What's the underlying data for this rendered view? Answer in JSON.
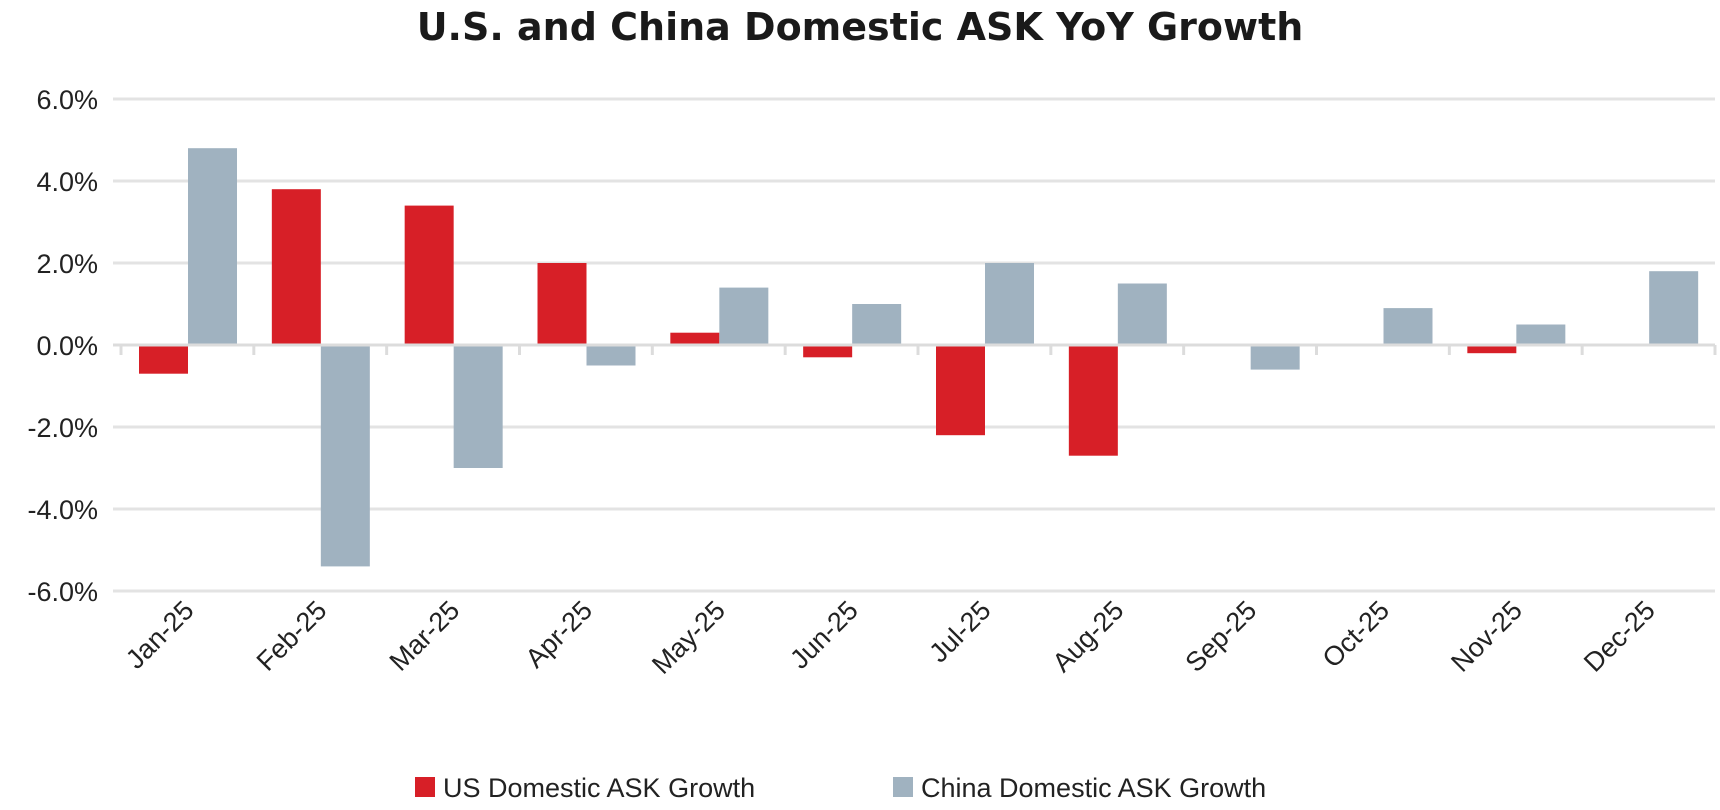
{
  "chart_data": {
    "type": "bar",
    "title": "U.S. and China Domestic ASK YoY Growth",
    "xlabel": "",
    "ylabel": "",
    "categories": [
      "Jan-25",
      "Feb-25",
      "Mar-25",
      "Apr-25",
      "May-25",
      "Jun-25",
      "Jul-25",
      "Aug-25",
      "Sep-25",
      "Oct-25",
      "Nov-25",
      "Dec-25"
    ],
    "series": [
      {
        "name": "US Domestic ASK Growth",
        "color": "#d71f27",
        "values": [
          -0.7,
          3.8,
          3.4,
          2.0,
          0.3,
          -0.3,
          -2.2,
          -2.7,
          0.0,
          0.0,
          -0.2,
          0.0
        ]
      },
      {
        "name": "China Domestic ASK Growth",
        "color": "#a0b2c0",
        "values": [
          4.8,
          -5.4,
          -3.0,
          -0.5,
          1.4,
          1.0,
          2.0,
          1.5,
          -0.6,
          0.9,
          0.5,
          1.8
        ]
      }
    ],
    "ylim": [
      -6,
      6
    ],
    "yticks": [
      6,
      4,
      2,
      0,
      -2,
      -4,
      -6
    ],
    "ytick_labels": [
      "6.0%",
      "4.0%",
      "2.0%",
      "0.0%",
      "-2.0%",
      "-4.0%",
      "-6.0%"
    ],
    "grid": true,
    "legend_position": "bottom"
  }
}
